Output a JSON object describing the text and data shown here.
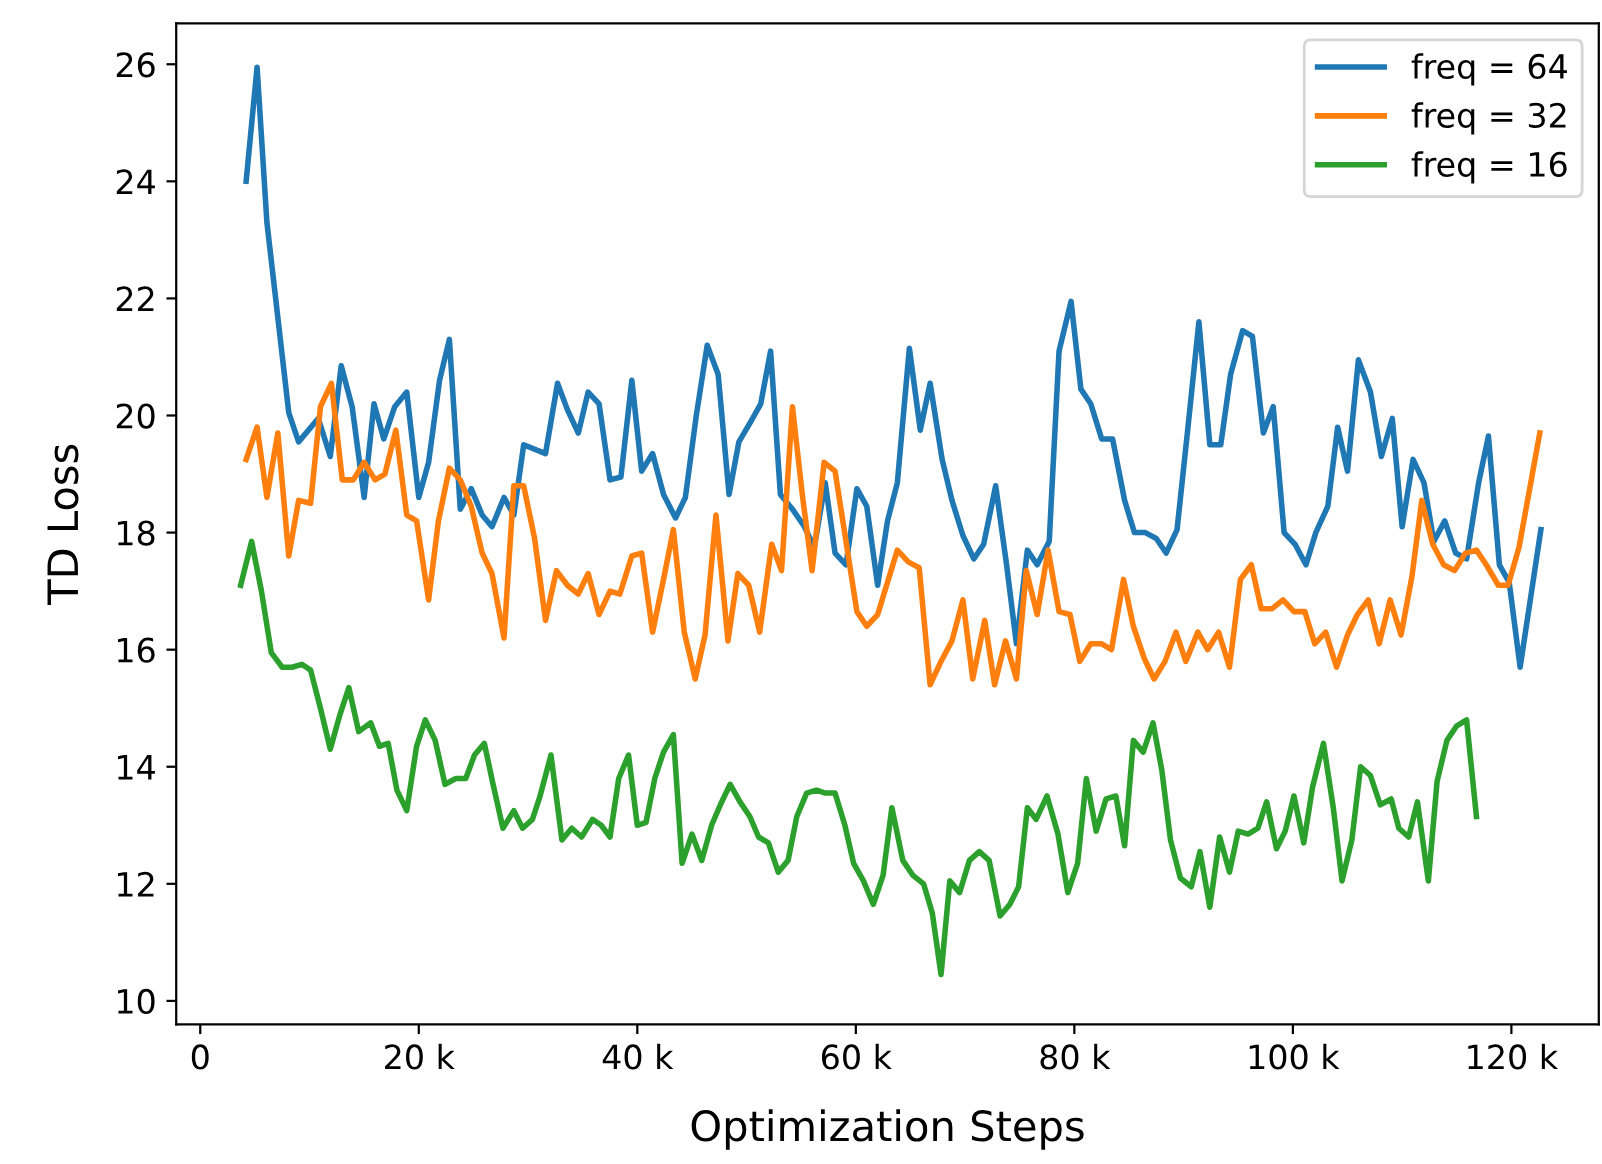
{
  "chart_data": {
    "type": "line",
    "xlabel": "Optimization Steps",
    "ylabel": "TD Loss",
    "xlim": [
      -2200,
      128000
    ],
    "ylim": [
      9.6,
      26.7
    ],
    "xticks": [
      {
        "value": 0,
        "label": "0"
      },
      {
        "value": 20000,
        "label": "20 k"
      },
      {
        "value": 40000,
        "label": "40 k"
      },
      {
        "value": 60000,
        "label": "60 k"
      },
      {
        "value": 80000,
        "label": "80 k"
      },
      {
        "value": 100000,
        "label": "100 k"
      },
      {
        "value": 120000,
        "label": "120 k"
      }
    ],
    "yticks": [
      10,
      12,
      14,
      16,
      18,
      20,
      22,
      24,
      26
    ],
    "grid": false,
    "legend": "top right",
    "line_style": "solid",
    "marker": "none",
    "series": [
      {
        "name": "freq = 64",
        "color": "#1f77b4",
        "x": [
          4200,
          5200,
          6100,
          8100,
          9000,
          10800,
          11900,
          12900,
          13900,
          15000,
          15900,
          16800,
          17800,
          18900,
          20000,
          20900,
          21900,
          22800,
          23800,
          24800,
          25800,
          26700,
          27800,
          28700,
          29600,
          31600,
          32700,
          33600,
          34600,
          35500,
          36500,
          37500,
          38500,
          39500,
          40400,
          41400,
          42400,
          43500,
          44400,
          45400,
          46400,
          47400,
          48400,
          49300,
          50400,
          51300,
          52200,
          53100,
          54200,
          55300,
          56200,
          57200,
          58100,
          59100,
          60100,
          61000,
          62000,
          62900,
          63800,
          64900,
          65900,
          66800,
          67900,
          68800,
          69800,
          70800,
          71700,
          72800,
          73800,
          74700,
          75700,
          76600,
          77700,
          78600,
          79700,
          80600,
          81500,
          82500,
          83500,
          84600,
          85500,
          86500,
          87500,
          88400,
          89400,
          90400,
          91400,
          92400,
          93400,
          94300,
          95400,
          96300,
          97300,
          98200,
          99200,
          100200,
          101200,
          102100,
          103200,
          104100,
          105000,
          106000,
          107100,
          108100,
          109100,
          110000,
          111000,
          112000,
          112900,
          113900,
          114900,
          115900,
          117000,
          117900,
          118900,
          119800,
          120800,
          122700
        ],
        "values": [
          24.0,
          25.95,
          23.3,
          20.05,
          19.55,
          19.95,
          19.3,
          20.85,
          20.15,
          18.6,
          20.2,
          19.6,
          20.15,
          20.4,
          18.6,
          19.2,
          20.6,
          21.3,
          18.4,
          18.75,
          18.3,
          18.1,
          18.6,
          18.3,
          19.5,
          19.35,
          20.55,
          20.1,
          19.7,
          20.4,
          20.2,
          18.9,
          18.95,
          20.6,
          19.05,
          19.35,
          18.65,
          18.25,
          18.6,
          20.0,
          21.2,
          20.7,
          18.65,
          19.55,
          19.9,
          20.2,
          21.1,
          18.65,
          18.4,
          18.1,
          17.75,
          18.85,
          17.65,
          17.45,
          18.75,
          18.45,
          17.1,
          18.2,
          18.85,
          21.15,
          19.75,
          20.55,
          19.25,
          18.55,
          17.95,
          17.55,
          17.8,
          18.8,
          17.45,
          16.1,
          17.7,
          17.45,
          17.85,
          21.1,
          21.95,
          20.45,
          20.2,
          19.6,
          19.6,
          18.55,
          18.0,
          18.0,
          17.9,
          17.65,
          18.05,
          19.8,
          21.6,
          19.5,
          19.5,
          20.7,
          21.45,
          21.35,
          19.7,
          20.15,
          18.0,
          17.8,
          17.45,
          18.0,
          18.45,
          19.8,
          19.05,
          20.95,
          20.4,
          19.3,
          19.95,
          18.1,
          19.25,
          18.85,
          17.85,
          18.2,
          17.65,
          17.55,
          18.85,
          19.65,
          17.45,
          17.15,
          15.7,
          18.05
        ]
      },
      {
        "name": "freq = 32",
        "color": "#ff7f0e",
        "x": [
          4200,
          5200,
          6100,
          7100,
          8100,
          9000,
          10100,
          11000,
          12000,
          13000,
          14000,
          15000,
          16000,
          16900,
          17900,
          18900,
          19800,
          20900,
          21800,
          22800,
          23800,
          24800,
          25800,
          26700,
          27800,
          28700,
          29600,
          30600,
          31600,
          32600,
          33600,
          34600,
          35500,
          36500,
          37500,
          38400,
          39500,
          40400,
          41400,
          42400,
          43300,
          44300,
          45300,
          46200,
          47200,
          48300,
          49200,
          50200,
          51200,
          52300,
          53200,
          54200,
          55100,
          56000,
          57100,
          58100,
          59100,
          60100,
          61000,
          62000,
          63800,
          64800,
          65800,
          66800,
          67800,
          68800,
          69800,
          70700,
          71800,
          72700,
          73700,
          74700,
          75600,
          76600,
          77600,
          78600,
          79600,
          80500,
          81500,
          82500,
          83400,
          84500,
          85400,
          86400,
          87300,
          88300,
          89300,
          90200,
          91300,
          92200,
          93200,
          94200,
          95200,
          96200,
          97100,
          98100,
          99100,
          100100,
          101100,
          102000,
          103000,
          104000,
          105000,
          105900,
          106900,
          107900,
          108900,
          109900,
          110900,
          111800,
          112800,
          113800,
          114800,
          115800,
          116800,
          117700,
          118800,
          119700,
          120700,
          122600
        ],
        "values": [
          19.25,
          19.8,
          18.6,
          19.7,
          17.6,
          18.55,
          18.5,
          20.15,
          20.55,
          18.9,
          18.9,
          19.2,
          18.9,
          19.0,
          19.75,
          18.3,
          18.2,
          16.85,
          18.2,
          19.1,
          18.9,
          18.45,
          17.65,
          17.3,
          16.2,
          18.8,
          18.8,
          17.9,
          16.5,
          17.35,
          17.1,
          16.95,
          17.3,
          16.6,
          17.0,
          16.95,
          17.6,
          17.65,
          16.3,
          17.2,
          18.05,
          16.3,
          15.5,
          16.25,
          18.3,
          16.15,
          17.3,
          17.1,
          16.3,
          17.8,
          17.35,
          20.15,
          18.65,
          17.35,
          19.2,
          19.05,
          17.85,
          16.65,
          16.4,
          16.6,
          17.7,
          17.5,
          17.4,
          15.4,
          15.8,
          16.15,
          16.85,
          15.5,
          16.5,
          15.4,
          16.15,
          15.5,
          17.35,
          16.6,
          17.7,
          16.65,
          16.6,
          15.8,
          16.1,
          16.1,
          16.0,
          17.2,
          16.4,
          15.85,
          15.5,
          15.8,
          16.3,
          15.8,
          16.3,
          16.0,
          16.3,
          15.7,
          17.2,
          17.45,
          16.7,
          16.7,
          16.85,
          16.65,
          16.65,
          16.1,
          16.3,
          15.7,
          16.25,
          16.6,
          16.85,
          16.1,
          16.85,
          16.25,
          17.25,
          18.55,
          17.8,
          17.45,
          17.35,
          17.65,
          17.7,
          17.45,
          17.1,
          17.1,
          17.75,
          19.7
        ]
      },
      {
        "name": "freq = 16",
        "color": "#2ca02c",
        "x": [
          3700,
          4700,
          5600,
          6500,
          7500,
          8400,
          9300,
          10100,
          11000,
          11900,
          12800,
          13600,
          14500,
          15600,
          16400,
          17200,
          18000,
          18900,
          19800,
          20600,
          21500,
          22400,
          23400,
          24300,
          25100,
          26000,
          26800,
          27700,
          28700,
          29500,
          30400,
          31100,
          32100,
          33100,
          34000,
          34900,
          35900,
          36700,
          37500,
          38300,
          39200,
          40000,
          40800,
          41600,
          42400,
          43300,
          44100,
          45000,
          45900,
          46800,
          47600,
          48500,
          49400,
          50300,
          51100,
          52000,
          52900,
          53800,
          54600,
          55500,
          56400,
          57200,
          58100,
          59000,
          59800,
          60700,
          61600,
          62500,
          63300,
          64300,
          65200,
          66200,
          67000,
          67800,
          68600,
          69500,
          70400,
          71300,
          72200,
          73200,
          74100,
          74900,
          75700,
          76500,
          77500,
          78500,
          79400,
          80300,
          81100,
          82000,
          82900,
          83800,
          84600,
          85400,
          86300,
          87200,
          88000,
          88800,
          89700,
          90700,
          91500,
          92400,
          93300,
          94200,
          95000,
          95900,
          96800,
          97600,
          98500,
          99300,
          100100,
          101000,
          101800,
          102800,
          103700,
          104500,
          105400,
          106200,
          107100,
          108000,
          109000,
          109700,
          110600,
          111400,
          112400,
          113200,
          114100,
          115000,
          115900,
          116800
        ],
        "values": [
          17.1,
          17.85,
          17.0,
          15.95,
          15.7,
          15.7,
          15.75,
          15.65,
          15.0,
          14.3,
          14.9,
          15.35,
          14.6,
          14.75,
          14.35,
          14.4,
          13.6,
          13.25,
          14.35,
          14.8,
          14.45,
          13.7,
          13.8,
          13.8,
          14.2,
          14.4,
          13.7,
          12.95,
          13.25,
          12.95,
          13.1,
          13.5,
          14.2,
          12.75,
          12.95,
          12.8,
          13.1,
          13.0,
          12.8,
          13.8,
          14.2,
          13.0,
          13.05,
          13.8,
          14.25,
          14.55,
          12.35,
          12.85,
          12.4,
          13.0,
          13.35,
          13.7,
          13.4,
          13.15,
          12.8,
          12.7,
          12.2,
          12.4,
          13.15,
          13.55,
          13.6,
          13.55,
          13.55,
          13.0,
          12.35,
          12.05,
          11.65,
          12.15,
          13.3,
          12.4,
          12.15,
          12.0,
          11.5,
          10.45,
          12.05,
          11.85,
          12.4,
          12.55,
          12.4,
          11.45,
          11.65,
          11.95,
          13.3,
          13.1,
          13.5,
          12.85,
          11.85,
          12.35,
          13.8,
          12.9,
          13.45,
          13.5,
          12.65,
          14.45,
          14.25,
          14.75,
          13.95,
          12.75,
          12.1,
          11.95,
          12.55,
          11.6,
          12.8,
          12.2,
          12.9,
          12.85,
          12.95,
          13.4,
          12.6,
          12.9,
          13.5,
          12.7,
          13.65,
          14.4,
          13.3,
          12.05,
          12.75,
          14.0,
          13.85,
          13.35,
          13.45,
          12.95,
          12.8,
          13.4,
          12.05,
          13.75,
          14.45,
          14.7,
          14.8,
          13.15
        ]
      }
    ]
  }
}
